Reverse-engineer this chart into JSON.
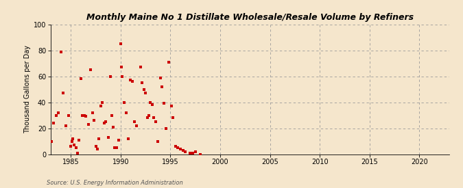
{
  "title": "Monthly Maine No 1 Distillate Wholesale/Resale Volume by Refiners",
  "ylabel": "Thousand Gallons per Day",
  "source": "Source: U.S. Energy Information Administration",
  "background_color": "#f5e6cc",
  "marker_color": "#cc0000",
  "xlim": [
    1983,
    2023
  ],
  "ylim": [
    0,
    100
  ],
  "xticks": [
    1985,
    1990,
    1995,
    2000,
    2005,
    2010,
    2015,
    2020
  ],
  "yticks": [
    0,
    20,
    40,
    60,
    80,
    100
  ],
  "data_x": [
    1983.08,
    1983.25,
    1983.5,
    1983.75,
    1984.0,
    1984.25,
    1984.5,
    1984.75,
    1985.0,
    1985.1,
    1985.2,
    1985.33,
    1985.5,
    1985.67,
    1985.83,
    1986.0,
    1986.17,
    1986.33,
    1986.5,
    1986.75,
    1987.0,
    1987.17,
    1987.33,
    1987.5,
    1987.67,
    1987.83,
    1988.0,
    1988.17,
    1988.33,
    1988.5,
    1988.75,
    1989.0,
    1989.1,
    1989.25,
    1989.42,
    1989.58,
    1989.83,
    1990.0,
    1990.08,
    1990.17,
    1990.33,
    1990.58,
    1990.75,
    1991.0,
    1991.17,
    1991.42,
    1991.58,
    1992.0,
    1992.17,
    1992.33,
    1992.5,
    1992.67,
    1992.83,
    1993.0,
    1993.17,
    1993.33,
    1993.5,
    1993.75,
    1994.0,
    1994.17,
    1994.33,
    1994.58,
    1994.83,
    1995.08,
    1995.25,
    1995.5,
    1995.75,
    1996.0,
    1996.25,
    1996.5,
    1997.0,
    1997.25,
    1997.5,
    1998.0
  ],
  "data_y": [
    10,
    24,
    30,
    32,
    79,
    47,
    22,
    30,
    6,
    10,
    12,
    7,
    5,
    1,
    11,
    58,
    30,
    30,
    29,
    23,
    65,
    32,
    26,
    6,
    4,
    12,
    37,
    40,
    24,
    25,
    13,
    60,
    30,
    21,
    5,
    5,
    11,
    85,
    67,
    60,
    40,
    32,
    12,
    57,
    56,
    25,
    22,
    67,
    55,
    50,
    47,
    28,
    30,
    40,
    38,
    28,
    25,
    10,
    59,
    52,
    39,
    20,
    71,
    37,
    28,
    6,
    5,
    4,
    3,
    2,
    1,
    1,
    2,
    0
  ]
}
